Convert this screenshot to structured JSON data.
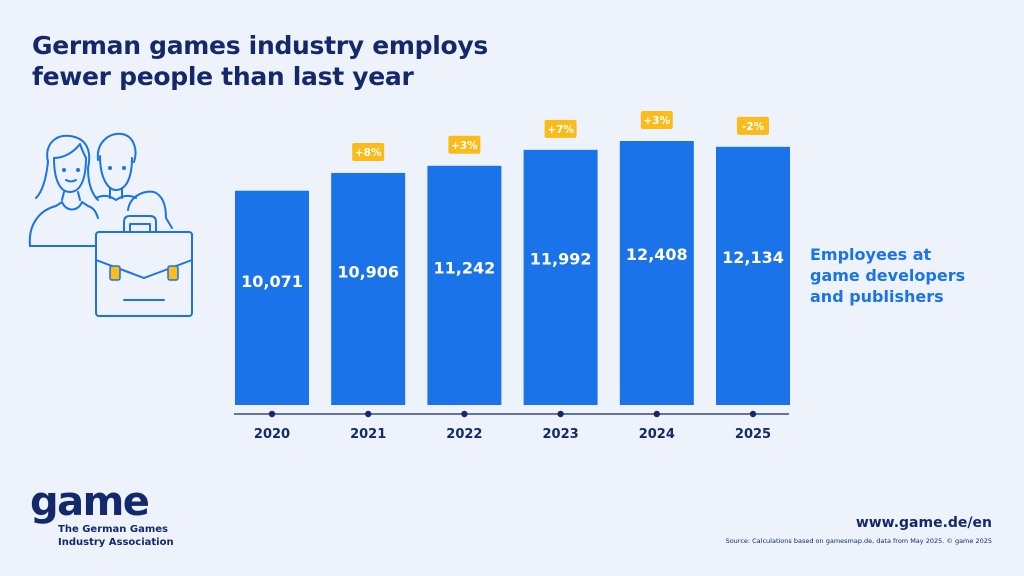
{
  "title": {
    "line1": "German games industry employs",
    "line2": "fewer people than last year"
  },
  "legend": {
    "line1": "Employees at",
    "line2": "game developers",
    "line3": "and publishers"
  },
  "logo": {
    "word": "game",
    "sub1": "The German Games",
    "sub2": "Industry Association"
  },
  "footer": {
    "url": "www.game.de/en",
    "source": "Source: Calculations based on gamesmap.de, data from May 2025. © game 2025"
  },
  "colors": {
    "bar": "#1a73e8",
    "badge": "#fbbc1a",
    "navy": "#13296b",
    "background": "#eef3fb"
  },
  "chart_data": {
    "type": "bar",
    "categories": [
      "2020",
      "2021",
      "2022",
      "2023",
      "2024",
      "2025"
    ],
    "values": [
      10071,
      10906,
      11242,
      11992,
      12408,
      12134
    ],
    "value_labels": [
      "10,071",
      "10,906",
      "11,242",
      "11,992",
      "12,408",
      "12,134"
    ],
    "changes": [
      "",
      "+8%",
      "+3%",
      "+7%",
      "+3%",
      "-2%"
    ],
    "series": [
      {
        "name": "Employees at game developers and publishers",
        "values": [
          10071,
          10906,
          11242,
          11992,
          12408,
          12134
        ]
      }
    ],
    "grid": false,
    "legend_position": "right"
  }
}
